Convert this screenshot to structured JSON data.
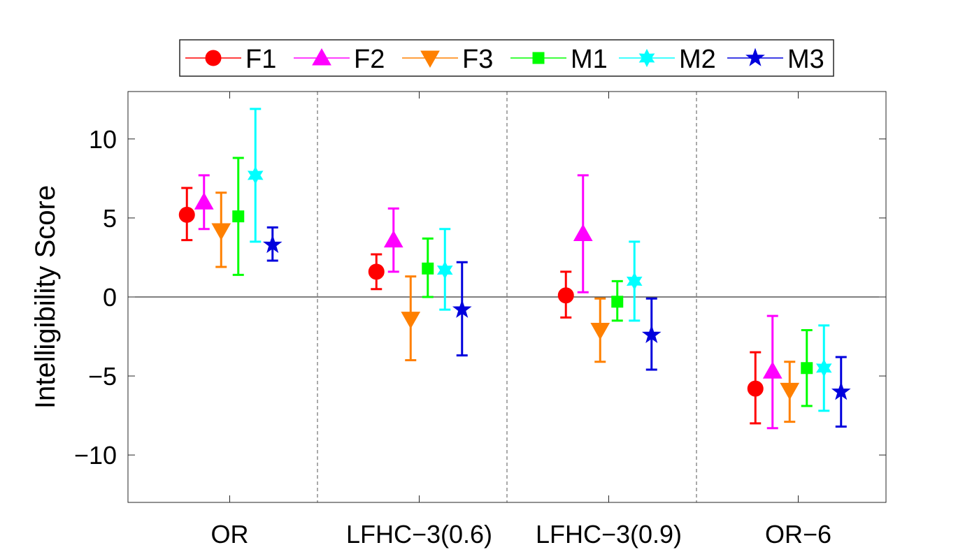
{
  "chart_data": {
    "type": "errorbar",
    "title": "",
    "xlabel": "",
    "ylabel": "Intelligibility Score",
    "ylim": [
      -13,
      13
    ],
    "yticks": [
      -10,
      -5,
      0,
      5,
      10
    ],
    "ytick_labels": [
      "−10",
      "−5",
      "0",
      "5",
      "10"
    ],
    "categories": [
      "OR",
      "LFHC−3(0.6)",
      "LFHC−3(0.9)",
      "OR−6"
    ],
    "zero_line": true,
    "group_separators": "dashed",
    "legend_position": "top",
    "series": [
      {
        "name": "F1",
        "color": "#ff0000",
        "marker": "circle",
        "values": [
          5.2,
          1.6,
          0.1,
          -5.8
        ],
        "lower": [
          3.6,
          0.5,
          -1.3,
          -8.0
        ],
        "upper": [
          6.9,
          2.7,
          1.6,
          -3.5
        ]
      },
      {
        "name": "F2",
        "color": "#ff00ff",
        "marker": "triangle-up",
        "values": [
          6.0,
          3.6,
          4.0,
          -4.7
        ],
        "lower": [
          4.3,
          1.6,
          0.3,
          -8.3
        ],
        "upper": [
          7.7,
          5.6,
          7.7,
          -1.2
        ]
      },
      {
        "name": "F3",
        "color": "#ff8000",
        "marker": "triangle-down",
        "values": [
          4.2,
          -1.4,
          -2.1,
          -5.9
        ],
        "lower": [
          1.9,
          -4.0,
          -4.1,
          -7.9
        ],
        "upper": [
          6.6,
          1.3,
          -0.1,
          -4.1
        ]
      },
      {
        "name": "M1",
        "color": "#00ff00",
        "marker": "square",
        "values": [
          5.1,
          1.8,
          -0.3,
          -4.5
        ],
        "lower": [
          1.4,
          0.0,
          -1.5,
          -6.9
        ],
        "upper": [
          8.8,
          3.7,
          1.0,
          -2.1
        ]
      },
      {
        "name": "M2",
        "color": "#00ffff",
        "marker": "hexagram",
        "values": [
          7.7,
          1.7,
          1.0,
          -4.5
        ],
        "lower": [
          3.5,
          -0.8,
          -1.5,
          -7.2
        ],
        "upper": [
          11.9,
          4.3,
          3.5,
          -1.8
        ]
      },
      {
        "name": "M3",
        "color": "#0000dd",
        "marker": "pentagram",
        "values": [
          3.3,
          -0.8,
          -2.4,
          -6.0
        ],
        "lower": [
          2.3,
          -3.7,
          -4.6,
          -8.2
        ],
        "upper": [
          4.4,
          2.2,
          -0.1,
          -3.8
        ]
      }
    ]
  }
}
